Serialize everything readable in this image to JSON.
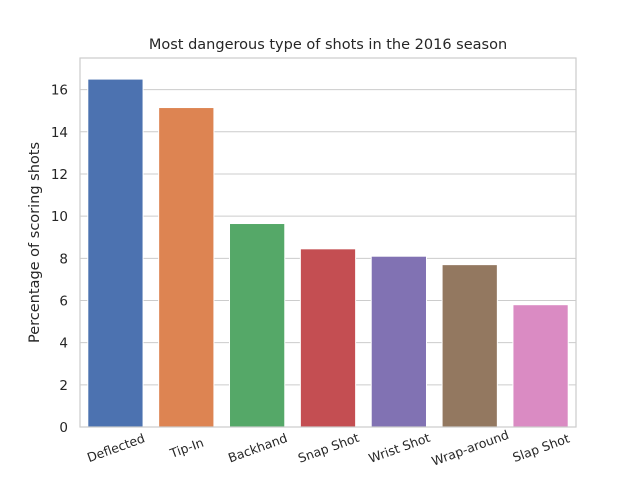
{
  "chart_data": {
    "type": "bar",
    "title": "Most dangerous type of shots in the 2016 season",
    "xlabel": "",
    "ylabel": "Percentage of scoring shots",
    "categories": [
      "Deflected",
      "Tip-In",
      "Backhand",
      "Snap Shot",
      "Wrist Shot",
      "Wrap-around",
      "Slap Shot"
    ],
    "values": [
      16.5,
      15.15,
      9.65,
      8.45,
      8.1,
      7.7,
      5.8
    ],
    "colors": [
      "#4c72b0",
      "#dd8452",
      "#55a868",
      "#c44e52",
      "#8172b3",
      "#937860",
      "#da8bc3"
    ],
    "ylim": [
      0,
      17.5
    ],
    "yticks": [
      0,
      2,
      4,
      6,
      8,
      10,
      12,
      14,
      16
    ],
    "grid": true,
    "x_tick_rotation": "slanted",
    "legend": "none"
  }
}
